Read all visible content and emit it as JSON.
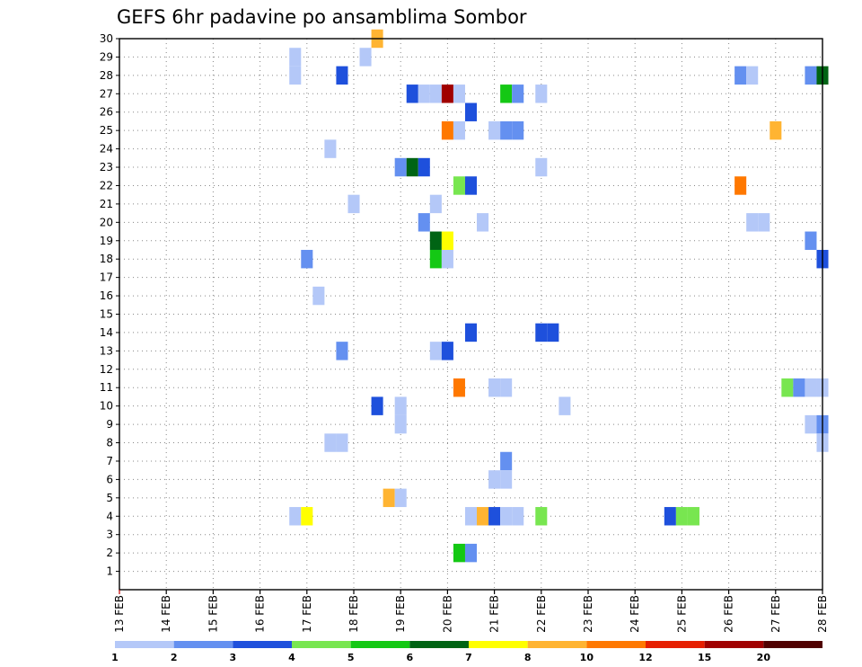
{
  "chart_data": {
    "type": "heatmap",
    "title": "GEFS 6hr padavine po ansamblima Sombor",
    "x_labels": [
      "13 FEB",
      "14 FEB",
      "15 FEB",
      "16 FEB",
      "17 FEB",
      "18 FEB",
      "19 FEB",
      "20 FEB",
      "21 FEB",
      "22 FEB",
      "23 FEB",
      "24 FEB",
      "25 FEB",
      "26 FEB",
      "27 FEB",
      "28 FEB"
    ],
    "y_range": [
      0,
      30
    ],
    "y_ticks": [
      1,
      2,
      3,
      4,
      5,
      6,
      7,
      8,
      9,
      10,
      11,
      12,
      13,
      14,
      15,
      16,
      17,
      18,
      19,
      20,
      21,
      22,
      23,
      24,
      25,
      26,
      27,
      28,
      29,
      30
    ],
    "grid": true,
    "colorbar": {
      "labels": [
        "1",
        "2",
        "3",
        "4",
        "5",
        "6",
        "7",
        "8",
        "10",
        "12",
        "15",
        "20"
      ],
      "colors": [
        "#b4c8f8",
        "#6490f0",
        "#1e50dc",
        "#78e650",
        "#14c814",
        "#006414",
        "#ffff00",
        "#ffb432",
        "#ff7800",
        "#e61e00",
        "#a00000",
        "#500000"
      ]
    },
    "cells": [
      {
        "x": 3.75,
        "y": 29,
        "c": 0
      },
      {
        "x": 3.75,
        "y": 28,
        "c": 0
      },
      {
        "x": 4.75,
        "y": 28,
        "c": 2
      },
      {
        "x": 5.5,
        "y": 30,
        "c": 7
      },
      {
        "x": 5.25,
        "y": 29,
        "c": 0
      },
      {
        "x": 6.25,
        "y": 27,
        "c": 2
      },
      {
        "x": 6.5,
        "y": 27,
        "c": 0
      },
      {
        "x": 6.75,
        "y": 27,
        "c": 0
      },
      {
        "x": 7.0,
        "y": 27,
        "c": 10
      },
      {
        "x": 7.25,
        "y": 27,
        "c": 0
      },
      {
        "x": 8.25,
        "y": 27,
        "c": 4
      },
      {
        "x": 8.5,
        "y": 27,
        "c": 1
      },
      {
        "x": 9.0,
        "y": 27,
        "c": 0
      },
      {
        "x": 13.25,
        "y": 28,
        "c": 1
      },
      {
        "x": 13.5,
        "y": 28,
        "c": 0
      },
      {
        "x": 14.75,
        "y": 28,
        "c": 1
      },
      {
        "x": 15.0,
        "y": 28,
        "c": 5
      },
      {
        "x": 7.5,
        "y": 26,
        "c": 2
      },
      {
        "x": 7.0,
        "y": 25,
        "c": 8
      },
      {
        "x": 7.25,
        "y": 25,
        "c": 0
      },
      {
        "x": 8.0,
        "y": 25,
        "c": 0
      },
      {
        "x": 8.25,
        "y": 25,
        "c": 1
      },
      {
        "x": 8.5,
        "y": 25,
        "c": 1
      },
      {
        "x": 14.0,
        "y": 25,
        "c": 7
      },
      {
        "x": 4.5,
        "y": 24,
        "c": 0
      },
      {
        "x": 6.0,
        "y": 23,
        "c": 1
      },
      {
        "x": 6.25,
        "y": 23,
        "c": 5
      },
      {
        "x": 6.5,
        "y": 23,
        "c": 2
      },
      {
        "x": 9.0,
        "y": 23,
        "c": 0
      },
      {
        "x": 7.25,
        "y": 22,
        "c": 3
      },
      {
        "x": 7.5,
        "y": 22,
        "c": 2
      },
      {
        "x": 13.25,
        "y": 22,
        "c": 8
      },
      {
        "x": 5.0,
        "y": 21,
        "c": 0
      },
      {
        "x": 6.75,
        "y": 21,
        "c": 0
      },
      {
        "x": 6.5,
        "y": 20,
        "c": 1
      },
      {
        "x": 7.75,
        "y": 20,
        "c": 0
      },
      {
        "x": 13.5,
        "y": 20,
        "c": 0
      },
      {
        "x": 13.75,
        "y": 20,
        "c": 0
      },
      {
        "x": 6.75,
        "y": 19,
        "c": 5
      },
      {
        "x": 7.0,
        "y": 19,
        "c": 6
      },
      {
        "x": 14.75,
        "y": 19,
        "c": 1
      },
      {
        "x": 6.75,
        "y": 18,
        "c": 4
      },
      {
        "x": 7.0,
        "y": 18,
        "c": 0
      },
      {
        "x": 4.0,
        "y": 18,
        "c": 1
      },
      {
        "x": 15.0,
        "y": 18,
        "c": 2
      },
      {
        "x": 4.25,
        "y": 16,
        "c": 0
      },
      {
        "x": 7.5,
        "y": 14,
        "c": 2
      },
      {
        "x": 9.0,
        "y": 14,
        "c": 2
      },
      {
        "x": 9.25,
        "y": 14,
        "c": 2
      },
      {
        "x": 4.75,
        "y": 13,
        "c": 1
      },
      {
        "x": 6.75,
        "y": 13,
        "c": 0
      },
      {
        "x": 7.0,
        "y": 13,
        "c": 2
      },
      {
        "x": 7.25,
        "y": 11,
        "c": 8
      },
      {
        "x": 8.0,
        "y": 11,
        "c": 0
      },
      {
        "x": 8.25,
        "y": 11,
        "c": 0
      },
      {
        "x": 14.25,
        "y": 11,
        "c": 3
      },
      {
        "x": 14.5,
        "y": 11,
        "c": 1
      },
      {
        "x": 14.75,
        "y": 11,
        "c": 0
      },
      {
        "x": 15.0,
        "y": 11,
        "c": 0
      },
      {
        "x": 5.5,
        "y": 10,
        "c": 2
      },
      {
        "x": 6.0,
        "y": 10,
        "c": 0
      },
      {
        "x": 9.5,
        "y": 10,
        "c": 0
      },
      {
        "x": 6.0,
        "y": 9,
        "c": 0
      },
      {
        "x": 14.75,
        "y": 9,
        "c": 0
      },
      {
        "x": 15.0,
        "y": 9,
        "c": 1
      },
      {
        "x": 4.5,
        "y": 8,
        "c": 0
      },
      {
        "x": 4.75,
        "y": 8,
        "c": 0
      },
      {
        "x": 15.0,
        "y": 8,
        "c": 0
      },
      {
        "x": 8.25,
        "y": 7,
        "c": 1
      },
      {
        "x": 8.0,
        "y": 6,
        "c": 0
      },
      {
        "x": 8.25,
        "y": 6,
        "c": 0
      },
      {
        "x": 5.75,
        "y": 5,
        "c": 7
      },
      {
        "x": 6.0,
        "y": 5,
        "c": 0
      },
      {
        "x": 3.75,
        "y": 4,
        "c": 0
      },
      {
        "x": 4.0,
        "y": 4,
        "c": 6
      },
      {
        "x": 7.5,
        "y": 4,
        "c": 0
      },
      {
        "x": 7.75,
        "y": 4,
        "c": 7
      },
      {
        "x": 8.0,
        "y": 4,
        "c": 2
      },
      {
        "x": 8.25,
        "y": 4,
        "c": 0
      },
      {
        "x": 8.5,
        "y": 4,
        "c": 0
      },
      {
        "x": 9.0,
        "y": 4,
        "c": 3
      },
      {
        "x": 11.75,
        "y": 4,
        "c": 2
      },
      {
        "x": 12.0,
        "y": 4,
        "c": 3
      },
      {
        "x": 12.25,
        "y": 4,
        "c": 3
      },
      {
        "x": 7.25,
        "y": 2,
        "c": 4
      },
      {
        "x": 7.5,
        "y": 2,
        "c": 1
      }
    ]
  }
}
